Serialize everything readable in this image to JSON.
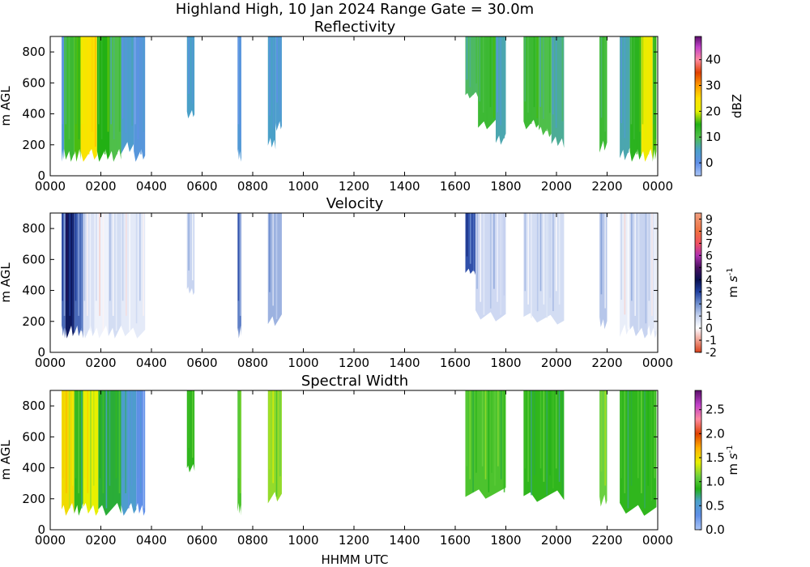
{
  "figure": {
    "title": "Highland High, 10 Jan 2024 Range Gate = 30.0m",
    "xlabel": "HHMM UTC",
    "ylabel": "m AGL"
  },
  "chart_data": [
    {
      "type": "heatmap",
      "title": "Reflectivity",
      "xlabel": "HHMM UTC",
      "ylabel": "m AGL",
      "xlim": [
        "0000",
        "0000"
      ],
      "x_ticks": [
        "0000",
        "0200",
        "0400",
        "0600",
        "0800",
        "1000",
        "1200",
        "1400",
        "1600",
        "1800",
        "2000",
        "2200",
        "0000"
      ],
      "ylim": [
        0,
        900
      ],
      "y_ticks": [
        "0",
        "200",
        "400",
        "600",
        "800"
      ],
      "colorbar": {
        "label": "dBZ",
        "range": [
          -5,
          49
        ],
        "ticks": [
          "0",
          "10",
          "20",
          "30",
          "40"
        ],
        "stops": [
          [
            -5,
            "#a9c4f5"
          ],
          [
            0,
            "#5f8fe8"
          ],
          [
            5,
            "#4aa0c8"
          ],
          [
            10,
            "#4fbf4a"
          ],
          [
            15,
            "#22b014"
          ],
          [
            20,
            "#e8f000"
          ],
          [
            25,
            "#ffe000"
          ],
          [
            30,
            "#ff9a00"
          ],
          [
            35,
            "#e04000"
          ],
          [
            40,
            "#ff8aa0"
          ],
          [
            45,
            "#c040c8"
          ],
          [
            49,
            "#5a0f6a"
          ]
        ]
      },
      "echoes": [
        {
          "start": 0.45,
          "end": 0.55,
          "top": 900,
          "bottom": 90,
          "value": 3
        },
        {
          "start": 0.55,
          "end": 0.95,
          "top": 900,
          "bottom": 90,
          "value": 12
        },
        {
          "start": 0.95,
          "end": 1.2,
          "top": 900,
          "bottom": 90,
          "value": 16
        },
        {
          "start": 1.2,
          "end": 1.85,
          "top": 900,
          "bottom": 90,
          "value": 24
        },
        {
          "start": 1.85,
          "end": 2.35,
          "top": 900,
          "bottom": 90,
          "value": 15
        },
        {
          "start": 2.35,
          "end": 2.8,
          "top": 900,
          "bottom": 90,
          "value": 10
        },
        {
          "start": 2.8,
          "end": 3.3,
          "top": 900,
          "bottom": 140,
          "value": 4
        },
        {
          "start": 3.3,
          "end": 3.75,
          "top": 900,
          "bottom": 90,
          "value": 2
        },
        {
          "start": 5.4,
          "end": 5.7,
          "top": 900,
          "bottom": 370,
          "value": 5
        },
        {
          "start": 7.4,
          "end": 7.55,
          "top": 900,
          "bottom": 90,
          "value": 3
        },
        {
          "start": 8.6,
          "end": 8.9,
          "top": 900,
          "bottom": 170,
          "value": 5
        },
        {
          "start": 8.9,
          "end": 9.15,
          "top": 900,
          "bottom": 290,
          "value": 4
        },
        {
          "start": 16.4,
          "end": 16.9,
          "top": 900,
          "bottom": 500,
          "value": 9
        },
        {
          "start": 16.9,
          "end": 17.6,
          "top": 900,
          "bottom": 300,
          "value": 12
        },
        {
          "start": 17.6,
          "end": 18.0,
          "top": 900,
          "bottom": 200,
          "value": 6
        },
        {
          "start": 18.7,
          "end": 19.3,
          "top": 900,
          "bottom": 300,
          "value": 12
        },
        {
          "start": 19.3,
          "end": 19.8,
          "top": 900,
          "bottom": 250,
          "value": 10
        },
        {
          "start": 19.8,
          "end": 20.3,
          "top": 900,
          "bottom": 180,
          "value": 7
        },
        {
          "start": 21.7,
          "end": 22.0,
          "top": 900,
          "bottom": 150,
          "value": 12
        },
        {
          "start": 22.5,
          "end": 22.9,
          "top": 900,
          "bottom": 100,
          "value": 6
        },
        {
          "start": 22.9,
          "end": 23.35,
          "top": 900,
          "bottom": 90,
          "value": 14
        },
        {
          "start": 23.35,
          "end": 23.8,
          "top": 900,
          "bottom": 90,
          "value": 22
        },
        {
          "start": 23.8,
          "end": 23.95,
          "top": 900,
          "bottom": 90,
          "value": 16
        }
      ]
    },
    {
      "type": "heatmap",
      "title": "Velocity",
      "xlabel": "HHMM UTC",
      "ylabel": "m AGL",
      "xlim": [
        "0000",
        "0000"
      ],
      "x_ticks": [
        "0000",
        "0200",
        "0400",
        "0600",
        "0800",
        "1000",
        "1200",
        "1400",
        "1600",
        "1800",
        "2000",
        "2200",
        "0000"
      ],
      "ylim": [
        0,
        900
      ],
      "y_ticks": [
        "0",
        "200",
        "400",
        "600",
        "800"
      ],
      "colorbar": {
        "label": "m s^-1",
        "range": [
          -2,
          9.5
        ],
        "ticks": [
          "-2",
          "-1",
          "0",
          "1",
          "2",
          "3",
          "4",
          "5",
          "6",
          "7",
          "8",
          "9"
        ],
        "stops": [
          [
            -2,
            "#d8401a"
          ],
          [
            -1,
            "#f0a090"
          ],
          [
            -0.3,
            "#f8e0e0"
          ],
          [
            0,
            "#ffffff"
          ],
          [
            1,
            "#c8d4f0"
          ],
          [
            2,
            "#7090d0"
          ],
          [
            3,
            "#2040a0"
          ],
          [
            4,
            "#0a1050"
          ],
          [
            5,
            "#4a1060"
          ],
          [
            6,
            "#b030b0"
          ],
          [
            7,
            "#f05060"
          ],
          [
            8,
            "#f07040"
          ],
          [
            9.5,
            "#f0a080"
          ]
        ]
      },
      "echoes": [
        {
          "start": 0.45,
          "end": 0.6,
          "top": 900,
          "bottom": 90,
          "value": 2.5
        },
        {
          "start": 0.6,
          "end": 0.95,
          "top": 900,
          "bottom": 90,
          "value": 3.8
        },
        {
          "start": 0.95,
          "end": 1.3,
          "top": 900,
          "bottom": 90,
          "value": 2.5
        },
        {
          "start": 1.3,
          "end": 1.75,
          "top": 900,
          "bottom": 90,
          "value": 0.7
        },
        {
          "start": 1.75,
          "end": 2.3,
          "top": 900,
          "bottom": 90,
          "value": 0.3
        },
        {
          "start": 2.3,
          "end": 2.8,
          "top": 900,
          "bottom": 90,
          "value": 0.8
        },
        {
          "start": 2.8,
          "end": 3.75,
          "top": 900,
          "bottom": 90,
          "value": 0.5
        },
        {
          "start": 5.4,
          "end": 5.7,
          "top": 900,
          "bottom": 370,
          "value": 1.0
        },
        {
          "start": 7.4,
          "end": 7.55,
          "top": 900,
          "bottom": 90,
          "value": 2.2
        },
        {
          "start": 8.6,
          "end": 9.15,
          "top": 900,
          "bottom": 170,
          "value": 1.5
        },
        {
          "start": 16.4,
          "end": 16.8,
          "top": 900,
          "bottom": 500,
          "value": 2.8
        },
        {
          "start": 16.8,
          "end": 18.0,
          "top": 900,
          "bottom": 200,
          "value": 0.9
        },
        {
          "start": 18.7,
          "end": 20.3,
          "top": 900,
          "bottom": 180,
          "value": 0.8
        },
        {
          "start": 21.7,
          "end": 22.0,
          "top": 900,
          "bottom": 150,
          "value": 1.2
        },
        {
          "start": 22.5,
          "end": 22.9,
          "top": 900,
          "bottom": 100,
          "value": 0.4
        },
        {
          "start": 22.9,
          "end": 23.6,
          "top": 900,
          "bottom": 90,
          "value": 1.0
        },
        {
          "start": 23.6,
          "end": 23.95,
          "top": 900,
          "bottom": 90,
          "value": 0.6
        }
      ]
    },
    {
      "type": "heatmap",
      "title": "Spectral Width",
      "xlabel": "HHMM UTC",
      "ylabel": "m AGL",
      "xlim": [
        "0000",
        "0000"
      ],
      "x_ticks": [
        "0000",
        "0200",
        "0400",
        "0600",
        "0800",
        "1000",
        "1200",
        "1400",
        "1600",
        "1800",
        "2000",
        "2200",
        "0000"
      ],
      "ylim": [
        0,
        900
      ],
      "y_ticks": [
        "0",
        "200",
        "400",
        "600",
        "800"
      ],
      "colorbar": {
        "label": "m s^-1",
        "range": [
          0,
          2.9
        ],
        "ticks": [
          "0.0",
          "0.5",
          "1.0",
          "1.5",
          "2.0",
          "2.5"
        ],
        "stops": [
          [
            0,
            "#a9c4f5"
          ],
          [
            0.3,
            "#5f8fe8"
          ],
          [
            0.6,
            "#4aa0c8"
          ],
          [
            0.85,
            "#22b014"
          ],
          [
            1.1,
            "#6ad040"
          ],
          [
            1.4,
            "#e8f000"
          ],
          [
            1.7,
            "#ffb000"
          ],
          [
            2.0,
            "#e04000"
          ],
          [
            2.3,
            "#ff8aa0"
          ],
          [
            2.6,
            "#c040c8"
          ],
          [
            2.9,
            "#5a0f6a"
          ]
        ]
      },
      "echoes": [
        {
          "start": 0.45,
          "end": 0.95,
          "top": 900,
          "bottom": 90,
          "value": 1.5
        },
        {
          "start": 0.95,
          "end": 1.3,
          "top": 900,
          "bottom": 90,
          "value": 0.9
        },
        {
          "start": 1.3,
          "end": 1.9,
          "top": 900,
          "bottom": 90,
          "value": 1.4
        },
        {
          "start": 1.9,
          "end": 2.8,
          "top": 900,
          "bottom": 90,
          "value": 0.8
        },
        {
          "start": 2.8,
          "end": 3.4,
          "top": 900,
          "bottom": 90,
          "value": 0.55
        },
        {
          "start": 3.4,
          "end": 3.75,
          "top": 900,
          "bottom": 90,
          "value": 0.3
        },
        {
          "start": 5.4,
          "end": 5.7,
          "top": 900,
          "bottom": 370,
          "value": 0.9
        },
        {
          "start": 7.4,
          "end": 7.55,
          "top": 900,
          "bottom": 90,
          "value": 1.0
        },
        {
          "start": 8.6,
          "end": 9.15,
          "top": 900,
          "bottom": 170,
          "value": 1.2
        },
        {
          "start": 16.4,
          "end": 18.0,
          "top": 900,
          "bottom": 200,
          "value": 1.0
        },
        {
          "start": 18.7,
          "end": 20.3,
          "top": 900,
          "bottom": 180,
          "value": 0.9
        },
        {
          "start": 21.7,
          "end": 22.0,
          "top": 900,
          "bottom": 150,
          "value": 1.1
        },
        {
          "start": 22.5,
          "end": 23.95,
          "top": 900,
          "bottom": 90,
          "value": 0.9
        }
      ]
    }
  ]
}
